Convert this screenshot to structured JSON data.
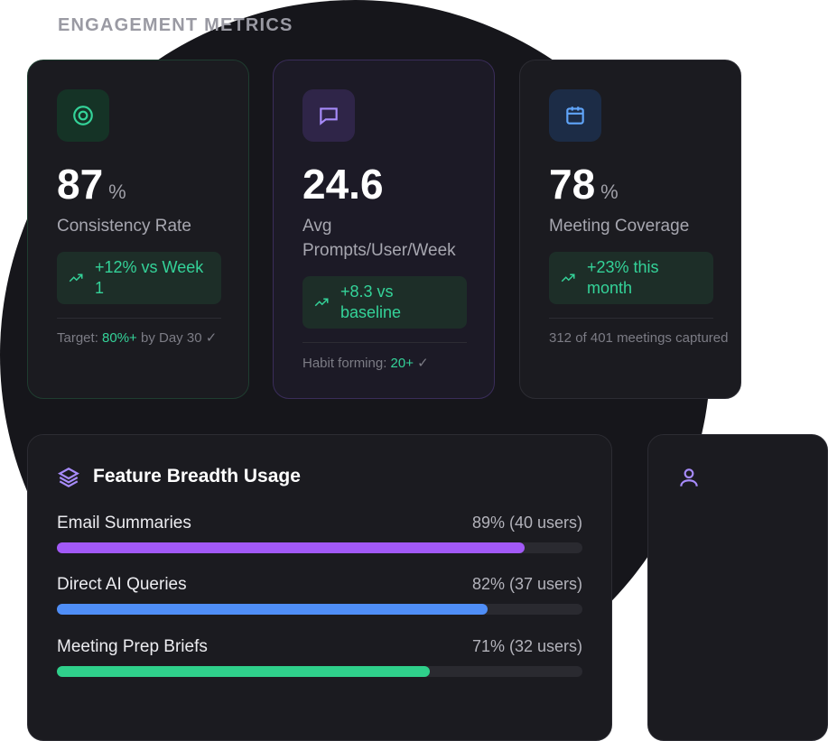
{
  "section": {
    "title": "ENGAGEMENT METRICS"
  },
  "cards": [
    {
      "value": "87",
      "unit": "%",
      "label": "Consistency Rate",
      "trend": "+12% vs Week 1",
      "foot_prefix": "Target: ",
      "foot_highlight": "80%+",
      "foot_suffix": " by Day 30 ✓",
      "icon": "target-icon"
    },
    {
      "value": "24.6",
      "unit": "",
      "label": "Avg Prompts/User/Week",
      "trend": "+8.3 vs baseline",
      "foot_prefix": "Habit forming: ",
      "foot_highlight": "20+",
      "foot_suffix": " ✓",
      "icon": "chat-bubble-icon"
    },
    {
      "value": "78",
      "unit": "%",
      "label": "Meeting Coverage",
      "trend": "+23% this month",
      "foot_prefix": "312 of 401 meetings captured",
      "foot_highlight": "",
      "foot_suffix": "",
      "icon": "calendar-icon"
    }
  ],
  "feature_panel": {
    "title": "Feature Breadth Usage",
    "icon": "layers-icon",
    "rows": [
      {
        "label": "Email Summaries",
        "value": "89% (40 users)",
        "percent": 89,
        "color": "#a259f7"
      },
      {
        "label": "Direct AI Queries",
        "value": "82% (37 users)",
        "percent": 82,
        "color": "#4f8ef7"
      },
      {
        "label": "Meeting Prep Briefs",
        "value": "71% (32 users)",
        "percent": 71,
        "color": "#2fd08b"
      }
    ]
  },
  "colors": {
    "accent_green": "#34d399",
    "accent_purple": "#a259f7",
    "accent_blue": "#4f8ef7",
    "background": "#16161b"
  }
}
